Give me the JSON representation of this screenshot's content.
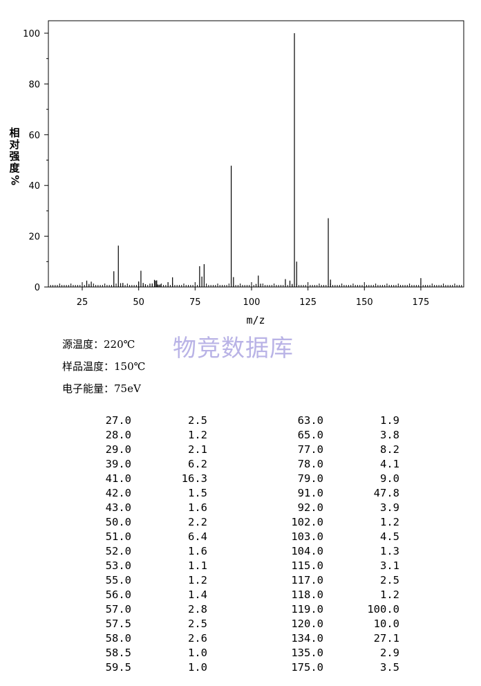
{
  "chart_data": {
    "type": "bar",
    "xlabel": "m/z",
    "ylabel": "相对强度%",
    "xlim": [
      10,
      194
    ],
    "ylim": [
      0,
      100
    ],
    "x_ticks": [
      25,
      50,
      75,
      100,
      125,
      150,
      175
    ],
    "y_ticks": [
      0,
      20,
      40,
      60,
      80,
      100
    ],
    "x": [
      27.0,
      28.0,
      29.0,
      39.0,
      41.0,
      42.0,
      43.0,
      50.0,
      51.0,
      52.0,
      53.0,
      55.0,
      56.0,
      57.0,
      57.5,
      58.0,
      58.5,
      59.5,
      63.0,
      65.0,
      77.0,
      78.0,
      79.0,
      91.0,
      92.0,
      102.0,
      103.0,
      104.0,
      115.0,
      117.0,
      118.0,
      119.0,
      120.0,
      134.0,
      135.0,
      175.0
    ],
    "values": [
      2.5,
      1.2,
      2.1,
      6.2,
      16.3,
      1.5,
      1.6,
      2.2,
      6.4,
      1.6,
      1.1,
      1.2,
      1.4,
      2.8,
      2.5,
      2.6,
      1.0,
      1.0,
      1.9,
      3.8,
      8.2,
      4.1,
      9.0,
      47.8,
      3.9,
      1.2,
      4.5,
      1.3,
      3.1,
      2.5,
      1.2,
      100.0,
      10.0,
      27.1,
      2.9,
      3.5
    ]
  },
  "ylabel_chars": [
    "相",
    "对",
    "强",
    "度",
    "%"
  ],
  "conditions": {
    "source_temp": "源温度：220℃",
    "sample_temp": "样品温度：150℃",
    "electron_energy": "电子能量：75eV"
  },
  "watermark": "物竞数据库",
  "peak_table": {
    "left": [
      [
        "27.0",
        "2.5"
      ],
      [
        "28.0",
        "1.2"
      ],
      [
        "29.0",
        "2.1"
      ],
      [
        "39.0",
        "6.2"
      ],
      [
        "41.0",
        "16.3"
      ],
      [
        "42.0",
        "1.5"
      ],
      [
        "43.0",
        "1.6"
      ],
      [
        "50.0",
        "2.2"
      ],
      [
        "51.0",
        "6.4"
      ],
      [
        "52.0",
        "1.6"
      ],
      [
        "53.0",
        "1.1"
      ],
      [
        "55.0",
        "1.2"
      ],
      [
        "56.0",
        "1.4"
      ],
      [
        "57.0",
        "2.8"
      ],
      [
        "57.5",
        "2.5"
      ],
      [
        "58.0",
        "2.6"
      ],
      [
        "58.5",
        "1.0"
      ],
      [
        "59.5",
        "1.0"
      ]
    ],
    "right": [
      [
        "63.0",
        "1.9"
      ],
      [
        "65.0",
        "3.8"
      ],
      [
        "77.0",
        "8.2"
      ],
      [
        "78.0",
        "4.1"
      ],
      [
        "79.0",
        "9.0"
      ],
      [
        "91.0",
        "47.8"
      ],
      [
        "92.0",
        "3.9"
      ],
      [
        "102.0",
        "1.2"
      ],
      [
        "103.0",
        "4.5"
      ],
      [
        "104.0",
        "1.3"
      ],
      [
        "115.0",
        "3.1"
      ],
      [
        "117.0",
        "2.5"
      ],
      [
        "118.0",
        "1.2"
      ],
      [
        "119.0",
        "100.0"
      ],
      [
        "120.0",
        "10.0"
      ],
      [
        "134.0",
        "27.1"
      ],
      [
        "135.0",
        "2.9"
      ],
      [
        "175.0",
        "3.5"
      ]
    ]
  }
}
